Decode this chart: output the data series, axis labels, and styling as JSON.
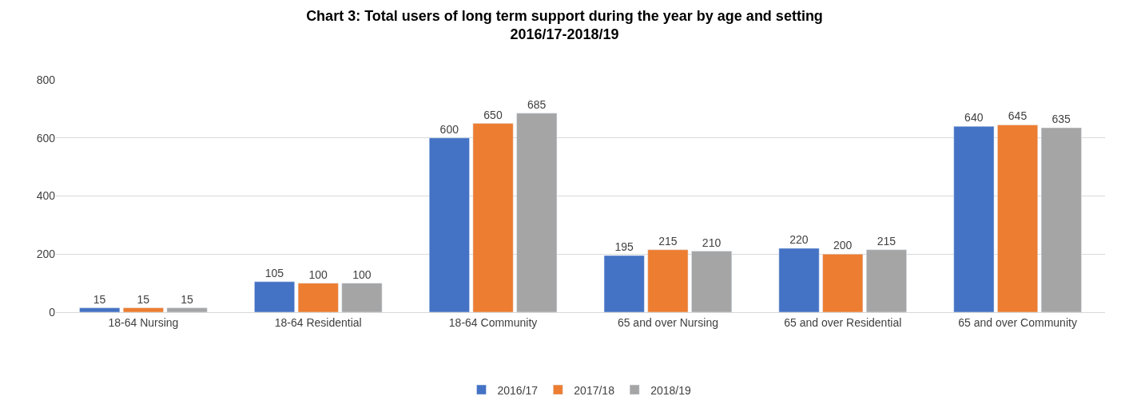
{
  "chart_data": {
    "type": "bar",
    "title": "Chart 3: Total users of long term support during the year by age and setting 2016/17-2018/19",
    "categories": [
      "18-64 Nursing",
      "18-64 Residential",
      "18-64 Community",
      "65 and over Nursing",
      "65 and over Residential",
      "65 and over Community"
    ],
    "series": [
      {
        "name": "2016/17",
        "color": "#4472c4",
        "values": [
          15,
          105,
          600,
          195,
          220,
          640
        ]
      },
      {
        "name": "2017/18",
        "color": "#ed7d31",
        "values": [
          15,
          100,
          650,
          215,
          200,
          645
        ]
      },
      {
        "name": "2018/19",
        "color": "#a5a5a5",
        "values": [
          15,
          100,
          685,
          210,
          215,
          635
        ]
      }
    ],
    "ylim": [
      0,
      800
    ],
    "yticks": [
      0,
      200,
      400,
      600,
      800
    ],
    "grid": "y",
    "legend": "bottom",
    "data_labels": true
  }
}
